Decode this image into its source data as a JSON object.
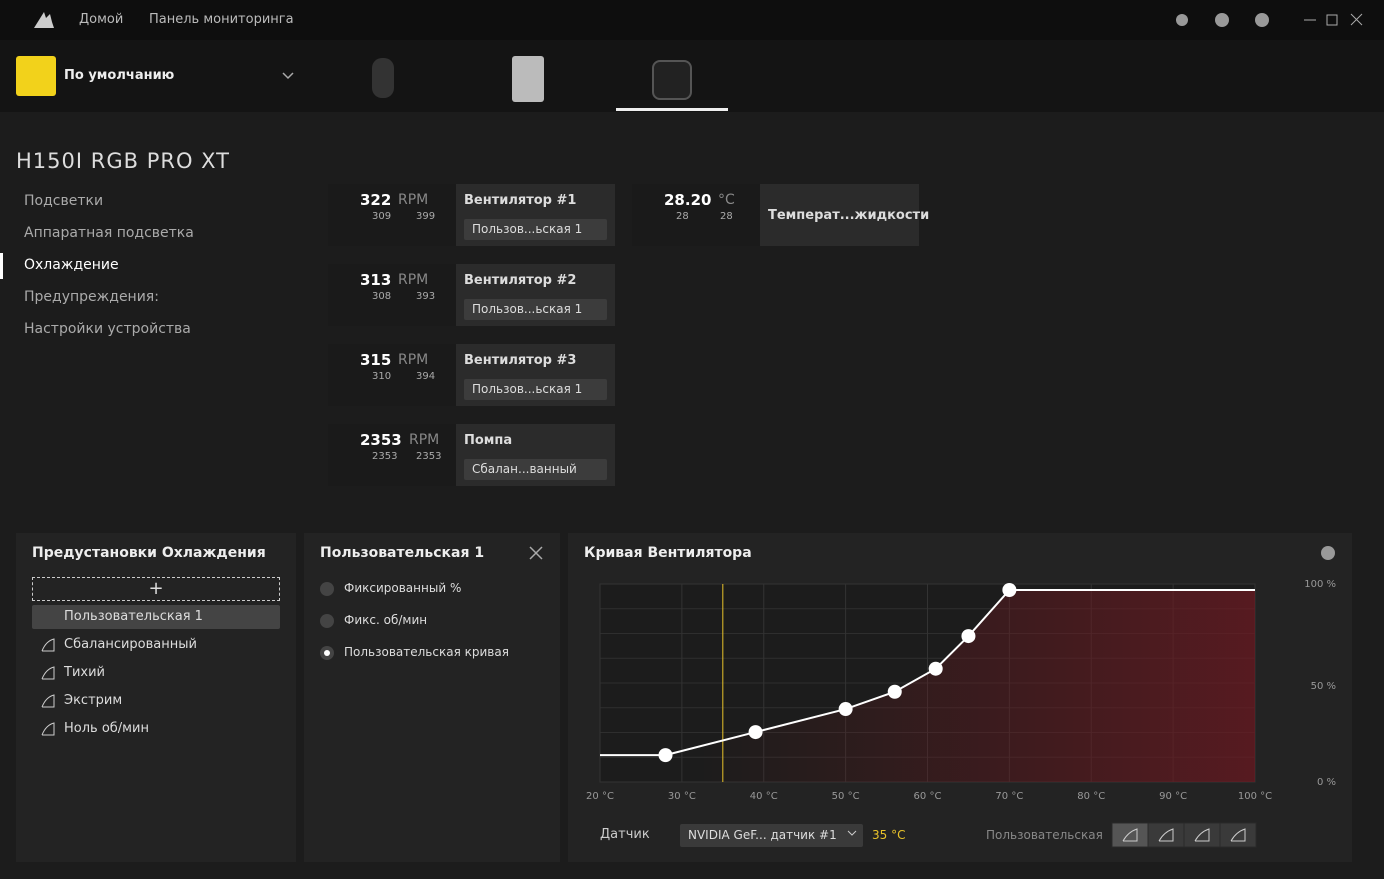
{
  "nav": {
    "links": [
      "Домой",
      "Панель мониторинга"
    ]
  },
  "profile": {
    "name": "По умолчанию"
  },
  "device": {
    "title": "H150I RGB PRO XT"
  },
  "sidebar": {
    "items": [
      "Подсветки",
      "Аппаратная подсветка",
      "Охлаждение",
      "Предупреждения:",
      "Настройки устройства"
    ],
    "active": 2
  },
  "fans": [
    {
      "value": 322,
      "unit": "RPM",
      "min": 309,
      "max": 399,
      "name": "Вентилятор #1",
      "preset": "Пользов...ьская 1"
    },
    {
      "value": 313,
      "unit": "RPM",
      "min": 308,
      "max": 393,
      "name": "Вентилятор #2",
      "preset": "Пользов...ьская 1"
    },
    {
      "value": 315,
      "unit": "RPM",
      "min": 310,
      "max": 394,
      "name": "Вентилятор #3",
      "preset": "Пользов...ьская 1"
    },
    {
      "value": 2353,
      "unit": "RPM",
      "min": 2353,
      "max": 2353,
      "name": "Помпа",
      "preset": "Сбалан...ванный"
    }
  ],
  "temp_sensor": {
    "value": "28.20",
    "unit": "°C",
    "min": 28,
    "max": 28,
    "name": "Температ...жидкости"
  },
  "presets": {
    "title": "Предустановки Охлаждения",
    "items": [
      "Пользовательская 1",
      "Сбалансированный",
      "Тихий",
      "Экстрим",
      "Ноль об/мин"
    ],
    "selected": 0
  },
  "mode": {
    "title": "Пользовательская 1",
    "options": [
      "Фиксированный %",
      "Фикс. об/мин",
      "Пользовательская кривая"
    ],
    "selected": 2
  },
  "fan_curve": {
    "title": "Кривая Вентилятора",
    "xlim": [
      20,
      100
    ],
    "ylim": [
      0,
      100
    ],
    "xticks": [
      {
        "value": 20,
        "label": "20 °C"
      },
      {
        "value": 30,
        "label": "30 °C"
      },
      {
        "value": 40,
        "label": "40 °C"
      },
      {
        "value": 50,
        "label": "50 °C"
      },
      {
        "value": 60,
        "label": "60 °C"
      },
      {
        "value": 70,
        "label": "70 °C"
      },
      {
        "value": 80,
        "label": "80 °C"
      },
      {
        "value": 90,
        "label": "90 °C"
      },
      {
        "value": 100,
        "label": "100 °C"
      }
    ],
    "yticks": [
      {
        "value": 100,
        "label": "100 %"
      },
      {
        "value": 50,
        "label": "50 %"
      },
      {
        "value": 0,
        "label": "0 %"
      }
    ],
    "points": [
      {
        "temp": 28,
        "percent": 14
      },
      {
        "temp": 39,
        "percent": 26
      },
      {
        "temp": 50,
        "percent": 38
      },
      {
        "temp": 56,
        "percent": 47
      },
      {
        "temp": 61,
        "percent": 59
      },
      {
        "temp": 65,
        "percent": 76
      },
      {
        "temp": 70,
        "percent": 100
      }
    ],
    "sensor_label": "Датчик",
    "sensor": "NVIDIA GeF... датчик #1",
    "sensor_value": {
      "value": 35,
      "label": "35 °C"
    },
    "curve_mode": "Пользовательская"
  }
}
